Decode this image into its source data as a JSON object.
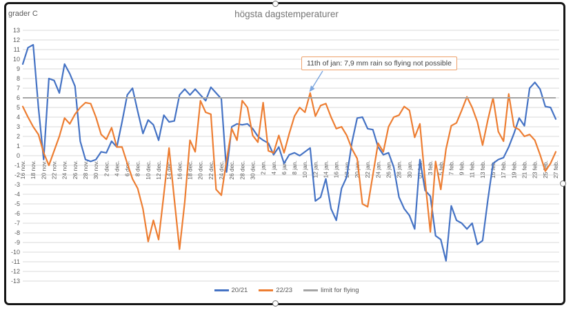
{
  "picture": {
    "handles": [
      "top-center",
      "bottom-center",
      "right-center"
    ]
  },
  "chart_data": {
    "type": "line",
    "title": "högsta dagstemperaturer",
    "ylabel": "grader C",
    "xlabel": "",
    "ylim": [
      -13,
      13
    ],
    "ytick_step": 1,
    "grid": true,
    "legend_position": "bottom",
    "label_every": 2,
    "x_tick_labels": [
      "16 nov.",
      "18 nov.",
      "20 nov.",
      "22 nov.",
      "24 nov.",
      "26 nov.",
      "28 nov.",
      "30 nov.",
      "2 dec.",
      "4 dec.",
      "6 dec.",
      "8 dec.",
      "10 dec.",
      "12 dec.",
      "14 dec.",
      "16 dec.",
      "18 dec.",
      "20 dec.",
      "22 dec.",
      "24 dec.",
      "26 dec.",
      "28 dec.",
      "30 dec.",
      "2 jan.",
      "4 jan.",
      "6 jan.",
      "8 jan.",
      "10 jan.",
      "12 jan.",
      "14 jan.",
      "16 jan.",
      "18 jan.",
      "20 jan.",
      "22 jan.",
      "24 jan.",
      "26 jan.",
      "28 jan.",
      "30 jan.",
      "01 feb.",
      "3 feb.",
      "5 feb.",
      "7 feb.",
      "9 feb.",
      "11 feb.",
      "13 feb.",
      "15 feb.",
      "17 feb.",
      "19 feb.",
      "21 feb.",
      "23 feb.",
      "25 feb.",
      "27 feb."
    ],
    "series": [
      {
        "name": "20/21",
        "color": "#4472C4",
        "values": [
          9.5,
          11.2,
          11.5,
          5.0,
          -0.4,
          8.0,
          7.8,
          6.5,
          9.5,
          8.5,
          7.2,
          1.5,
          -0.4,
          -0.6,
          -0.4,
          0.4,
          0.3,
          1.5,
          0.9,
          3.5,
          6.3,
          7.0,
          4.6,
          2.3,
          3.7,
          3.2,
          1.6,
          4.2,
          3.5,
          3.6,
          6.3,
          6.9,
          6.3,
          6.9,
          6.3,
          5.7,
          7.1,
          6.5,
          5.9,
          -1.7,
          3.0,
          3.3,
          3.2,
          3.3,
          2.8,
          2.0,
          1.6,
          1.3,
          0.1,
          0.9,
          -0.8,
          0.1,
          0.3,
          0.0,
          0.4,
          0.8,
          -4.7,
          -4.3,
          -2.4,
          -5.5,
          -6.7,
          -3.4,
          -2.2,
          1.4,
          3.9,
          4.0,
          2.8,
          2.7,
          0.9,
          0.1,
          0.3,
          -1.2,
          -4.3,
          -5.5,
          -6.2,
          -7.6,
          -0.4,
          -3.6,
          -4.2,
          -8.3,
          -8.7,
          -10.9,
          -5.2,
          -6.7,
          -7.0,
          -7.6,
          -7.0,
          -9.2,
          -8.8,
          -4.6,
          -0.8,
          -0.4,
          -0.2,
          0.9,
          2.3,
          3.9,
          3.1,
          7.0,
          7.6,
          6.9,
          5.1,
          5.0,
          3.8
        ]
      },
      {
        "name": "22/23",
        "color": "#ED7D31",
        "values": [
          5.1,
          4.0,
          3.0,
          2.2,
          0.3,
          -1.0,
          0.5,
          2.0,
          3.9,
          3.3,
          4.3,
          5.0,
          5.5,
          5.4,
          4.0,
          2.2,
          1.7,
          2.9,
          0.9,
          0.9,
          -0.8,
          -2.4,
          -3.4,
          -5.5,
          -8.9,
          -6.7,
          -8.7,
          -4.0,
          0.8,
          -4.5,
          -9.7,
          -4.8,
          1.6,
          0.4,
          5.7,
          4.5,
          4.3,
          -3.5,
          -4.1,
          -0.5,
          2.8,
          1.6,
          5.7,
          5.0,
          2.1,
          1.4,
          5.5,
          0.5,
          0.3,
          2.1,
          0.3,
          2.3,
          4.1,
          5.0,
          4.5,
          6.5,
          4.1,
          5.2,
          5.4,
          4.0,
          2.8,
          3.0,
          2.1,
          0.7,
          -0.3,
          -5.0,
          -5.3,
          -2.0,
          1.3,
          0.4,
          3.0,
          4.0,
          4.2,
          5.1,
          4.7,
          1.9,
          3.3,
          -2.6,
          -7.9,
          -0.6,
          -3.5,
          0.7,
          3.1,
          3.4,
          4.7,
          6.1,
          5.0,
          3.5,
          1.1,
          3.7,
          6.0,
          2.5,
          1.5,
          6.4,
          3.0,
          2.7,
          2.0,
          2.2,
          1.6,
          0.1,
          -1.6,
          -0.8,
          0.4
        ]
      },
      {
        "name": "limit for flying",
        "color": "#A5A5A5",
        "constant": 6
      }
    ],
    "annotation": {
      "text": "11th of jan: 7,9 mm rain so flying not possible",
      "points_to": {
        "series": "22/23",
        "x_label": "10 jan.",
        "value": 6.5
      }
    }
  }
}
